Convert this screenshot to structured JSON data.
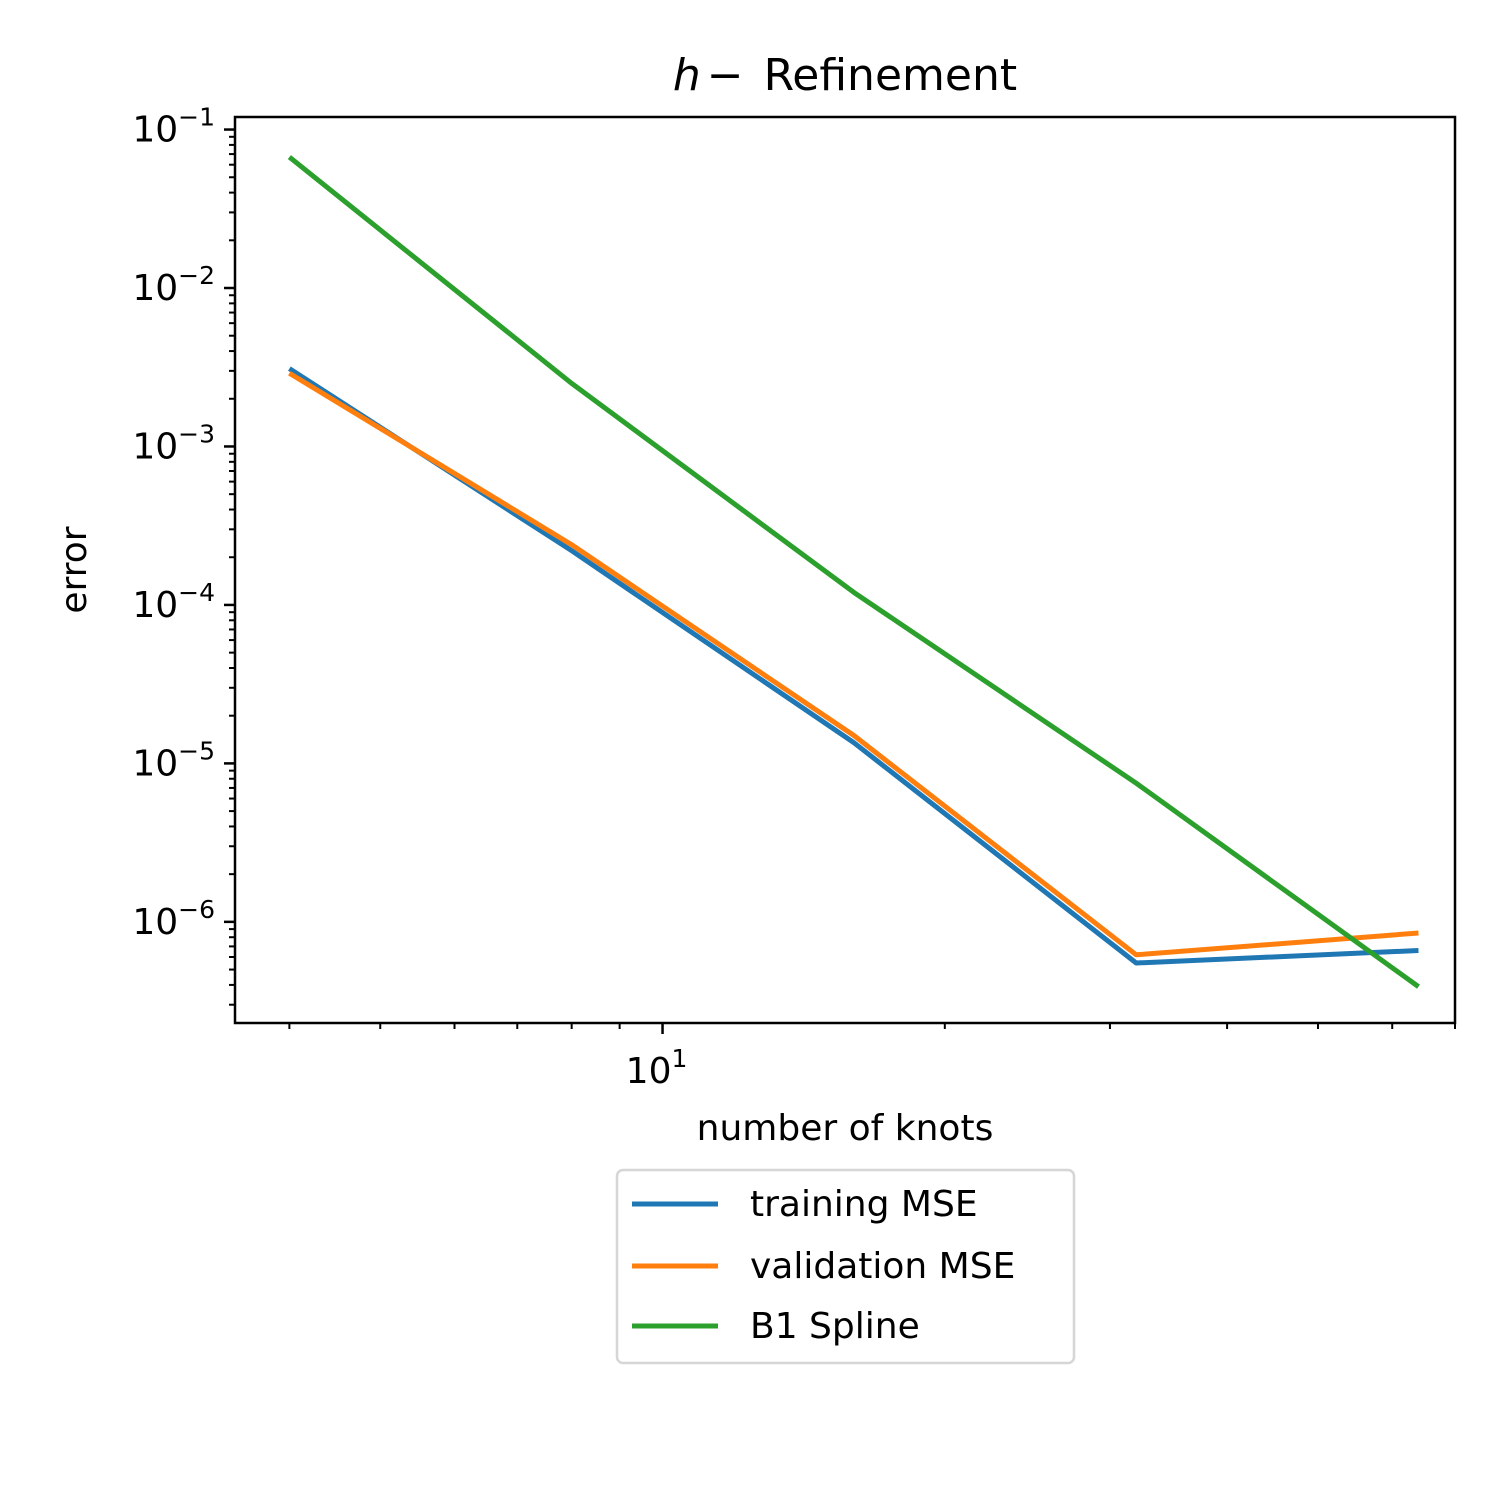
{
  "chart_data": {
    "type": "line",
    "title": {
      "variable": "h",
      "dash": "−",
      "text": "Refinement"
    },
    "xlabel": "number of knots",
    "ylabel": "error",
    "xscale": "log",
    "yscale": "log",
    "xlim": [
      3.5,
      70
    ],
    "ylim": [
      2.3e-07,
      0.12
    ],
    "x": [
      4,
      8,
      16,
      32,
      64
    ],
    "series": [
      {
        "name": "training MSE",
        "color": "#1f77b4",
        "values": [
          0.0031,
          0.00022,
          1.35e-05,
          5.5e-07,
          6.6e-07
        ]
      },
      {
        "name": "validation MSE",
        "color": "#ff7f0e",
        "values": [
          0.0029,
          0.00024,
          1.5e-05,
          6.2e-07,
          8.5e-07
        ]
      },
      {
        "name": "B1 Spline",
        "color": "#2ca02c",
        "values": [
          0.067,
          0.0025,
          0.00012,
          7.5e-06,
          3.9e-07
        ]
      }
    ],
    "xticks": [
      {
        "value": 10,
        "base": "10",
        "exp": "1"
      }
    ],
    "yticks": [
      {
        "value": 0.1,
        "base": "10",
        "exp": "−1"
      },
      {
        "value": 0.01,
        "base": "10",
        "exp": "−2"
      },
      {
        "value": 0.001,
        "base": "10",
        "exp": "−3"
      },
      {
        "value": 0.0001,
        "base": "10",
        "exp": "−4"
      },
      {
        "value": 1e-05,
        "base": "10",
        "exp": "−5"
      },
      {
        "value": 1e-06,
        "base": "10",
        "exp": "−6"
      }
    ],
    "grid": false,
    "legend_position": "below-center"
  }
}
